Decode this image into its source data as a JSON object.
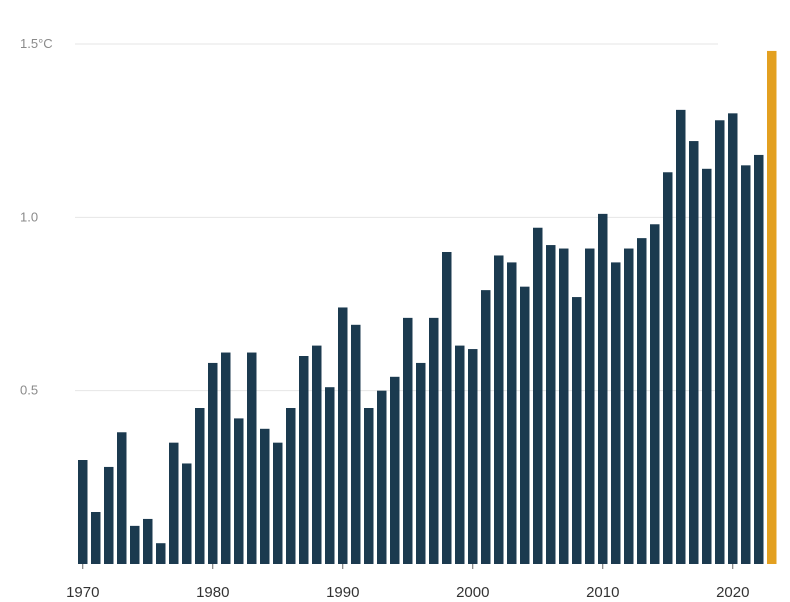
{
  "chart_data": {
    "type": "bar",
    "x": [
      1970,
      1971,
      1972,
      1973,
      1974,
      1975,
      1976,
      1977,
      1978,
      1979,
      1980,
      1981,
      1982,
      1983,
      1984,
      1985,
      1986,
      1987,
      1988,
      1989,
      1990,
      1991,
      1992,
      1993,
      1994,
      1995,
      1996,
      1997,
      1998,
      1999,
      2000,
      2001,
      2002,
      2003,
      2004,
      2005,
      2006,
      2007,
      2008,
      2009,
      2010,
      2011,
      2012,
      2013,
      2014,
      2015,
      2016,
      2017,
      2018,
      2019,
      2020,
      2021,
      2022,
      2023
    ],
    "values": [
      0.3,
      0.15,
      0.28,
      0.38,
      0.11,
      0.13,
      0.06,
      0.35,
      0.29,
      0.45,
      0.58,
      0.61,
      0.42,
      0.61,
      0.39,
      0.35,
      0.45,
      0.6,
      0.63,
      0.51,
      0.74,
      0.69,
      0.45,
      0.5,
      0.54,
      0.71,
      0.58,
      0.71,
      0.9,
      0.63,
      0.62,
      0.79,
      0.89,
      0.87,
      0.8,
      0.97,
      0.92,
      0.91,
      0.77,
      0.91,
      1.01,
      0.87,
      0.91,
      0.94,
      0.98,
      1.13,
      1.31,
      1.22,
      1.14,
      1.28,
      1.3,
      1.15,
      1.18,
      1.48
    ],
    "highlight_index": 53,
    "colors": {
      "bar": "#1b3a4f",
      "highlight": "#e3a020",
      "grid": "#e6e6e6"
    },
    "ylim": [
      0,
      1.5
    ],
    "yticks": [
      {
        "value": 0.5,
        "label": "0.5"
      },
      {
        "value": 1.0,
        "label": "1.0"
      },
      {
        "value": 1.5,
        "label": "1.5°C"
      }
    ],
    "xticks": [
      1970,
      1980,
      1990,
      2000,
      2010,
      2020
    ],
    "title": "",
    "xlabel": "",
    "ylabel": "",
    "grid": true
  }
}
